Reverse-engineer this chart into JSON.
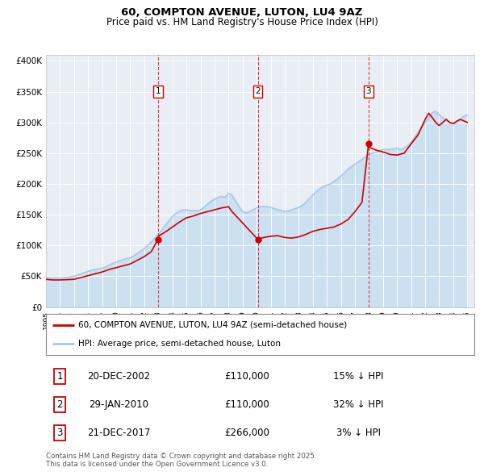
{
  "title": "60, COMPTON AVENUE, LUTON, LU4 9AZ",
  "subtitle": "Price paid vs. HM Land Registry's House Price Index (HPI)",
  "legend_line1": "60, COMPTON AVENUE, LUTON, LU4 9AZ (semi-detached house)",
  "legend_line2": "HPI: Average price, semi-detached house, Luton",
  "footer": "Contains HM Land Registry data © Crown copyright and database right 2025.\nThis data is licensed under the Open Government Licence v3.0.",
  "red_color": "#cc0000",
  "blue_color": "#a8c8e8",
  "blue_fill_color": "#c8dff0",
  "background_color": "#e8eef4",
  "transactions": [
    {
      "num": 1,
      "date": "20-DEC-2002",
      "price": 110000,
      "hpi_pct": "15% ↓ HPI",
      "x": 2002.97
    },
    {
      "num": 2,
      "date": "29-JAN-2010",
      "price": 110000,
      "hpi_pct": "32% ↓ HPI",
      "x": 2010.08
    },
    {
      "num": 3,
      "date": "21-DEC-2017",
      "price": 266000,
      "hpi_pct": "3% ↓ HPI",
      "x": 2017.97
    }
  ],
  "hpi_data_x": [
    1995.0,
    1995.25,
    1995.5,
    1995.75,
    1996.0,
    1996.25,
    1996.5,
    1996.75,
    1997.0,
    1997.25,
    1997.5,
    1997.75,
    1998.0,
    1998.25,
    1998.5,
    1998.75,
    1999.0,
    1999.25,
    1999.5,
    1999.75,
    2000.0,
    2000.25,
    2000.5,
    2000.75,
    2001.0,
    2001.25,
    2001.5,
    2001.75,
    2002.0,
    2002.25,
    2002.5,
    2002.75,
    2003.0,
    2003.25,
    2003.5,
    2003.75,
    2004.0,
    2004.25,
    2004.5,
    2004.75,
    2005.0,
    2005.25,
    2005.5,
    2005.75,
    2006.0,
    2006.25,
    2006.5,
    2006.75,
    2007.0,
    2007.25,
    2007.5,
    2007.75,
    2008.0,
    2008.25,
    2008.5,
    2008.75,
    2009.0,
    2009.25,
    2009.5,
    2009.75,
    2010.0,
    2010.25,
    2010.5,
    2010.75,
    2011.0,
    2011.25,
    2011.5,
    2011.75,
    2012.0,
    2012.25,
    2012.5,
    2012.75,
    2013.0,
    2013.25,
    2013.5,
    2013.75,
    2014.0,
    2014.25,
    2014.5,
    2014.75,
    2015.0,
    2015.25,
    2015.5,
    2015.75,
    2016.0,
    2016.25,
    2016.5,
    2016.75,
    2017.0,
    2017.25,
    2017.5,
    2017.75,
    2018.0,
    2018.25,
    2018.5,
    2018.75,
    2019.0,
    2019.25,
    2019.5,
    2019.75,
    2020.0,
    2020.25,
    2020.5,
    2020.75,
    2021.0,
    2021.25,
    2021.5,
    2021.75,
    2022.0,
    2022.25,
    2022.5,
    2022.75,
    2023.0,
    2023.25,
    2023.5,
    2023.75,
    2024.0,
    2024.25,
    2024.5,
    2024.75,
    2025.0
  ],
  "hpi_data_y": [
    48000,
    47500,
    47000,
    47500,
    47000,
    47500,
    48000,
    49000,
    50000,
    52000,
    54000,
    56000,
    58000,
    60000,
    61000,
    62000,
    63000,
    65000,
    68000,
    71000,
    73000,
    75000,
    77000,
    79000,
    80000,
    83000,
    87000,
    91000,
    95000,
    100000,
    106000,
    112000,
    118000,
    125000,
    133000,
    140000,
    147000,
    152000,
    156000,
    158000,
    158000,
    157000,
    157000,
    156000,
    158000,
    162000,
    167000,
    172000,
    175000,
    178000,
    180000,
    178000,
    185000,
    182000,
    172000,
    163000,
    155000,
    153000,
    155000,
    158000,
    161000,
    163000,
    164000,
    163000,
    162000,
    160000,
    158000,
    157000,
    155000,
    156000,
    158000,
    160000,
    162000,
    165000,
    170000,
    176000,
    182000,
    188000,
    192000,
    196000,
    198000,
    200000,
    204000,
    208000,
    213000,
    218000,
    224000,
    228000,
    232000,
    236000,
    240000,
    244000,
    248000,
    250000,
    252000,
    254000,
    256000,
    256000,
    256000,
    257000,
    258000,
    256000,
    258000,
    262000,
    268000,
    276000,
    284000,
    292000,
    300000,
    308000,
    316000,
    318000,
    312000,
    308000,
    304000,
    300000,
    298000,
    300000,
    305000,
    310000,
    312000
  ],
  "red_data_x": [
    1995.0,
    1995.5,
    1996.0,
    1996.5,
    1997.0,
    1997.5,
    1998.0,
    1998.5,
    1999.0,
    1999.5,
    2000.0,
    2000.5,
    2001.0,
    2001.5,
    2002.0,
    2002.5,
    2002.97,
    2003.0,
    2003.5,
    2004.0,
    2004.5,
    2005.0,
    2005.5,
    2006.0,
    2006.5,
    2007.0,
    2007.5,
    2008.0,
    2008.25,
    2010.08,
    2010.5,
    2011.0,
    2011.5,
    2012.0,
    2012.5,
    2013.0,
    2013.5,
    2014.0,
    2014.5,
    2015.0,
    2015.5,
    2016.0,
    2016.5,
    2017.0,
    2017.5,
    2017.97,
    2018.0,
    2018.5,
    2019.0,
    2019.5,
    2020.0,
    2020.5,
    2021.0,
    2021.5,
    2022.0,
    2022.25,
    2022.5,
    2022.75,
    2023.0,
    2023.25,
    2023.5,
    2023.75,
    2024.0,
    2024.25,
    2024.5,
    2025.0
  ],
  "red_data_y": [
    45000,
    44000,
    44000,
    44500,
    45000,
    48000,
    51000,
    54000,
    57000,
    61000,
    64000,
    67000,
    70000,
    76000,
    82000,
    90000,
    110000,
    115000,
    122000,
    130000,
    138000,
    145000,
    148000,
    152000,
    155000,
    158000,
    161000,
    163000,
    155000,
    110000,
    113000,
    115000,
    116000,
    113000,
    112000,
    114000,
    118000,
    123000,
    126000,
    128000,
    130000,
    135000,
    142000,
    155000,
    170000,
    266000,
    260000,
    255000,
    252000,
    248000,
    247000,
    250000,
    265000,
    280000,
    305000,
    315000,
    308000,
    300000,
    295000,
    300000,
    305000,
    300000,
    298000,
    302000,
    305000,
    300000
  ],
  "ylim": [
    0,
    410000
  ],
  "xlim": [
    1995.0,
    2025.5
  ],
  "yticks": [
    0,
    50000,
    100000,
    150000,
    200000,
    250000,
    300000,
    350000,
    400000
  ],
  "ytick_labels": [
    "£0",
    "£50K",
    "£100K",
    "£150K",
    "£200K",
    "£250K",
    "£300K",
    "£350K",
    "£400K"
  ],
  "xticks": [
    1995,
    1996,
    1997,
    1998,
    1999,
    2000,
    2001,
    2002,
    2003,
    2004,
    2005,
    2006,
    2007,
    2008,
    2009,
    2010,
    2011,
    2012,
    2013,
    2014,
    2015,
    2016,
    2017,
    2018,
    2019,
    2020,
    2021,
    2022,
    2023,
    2024,
    2025
  ]
}
